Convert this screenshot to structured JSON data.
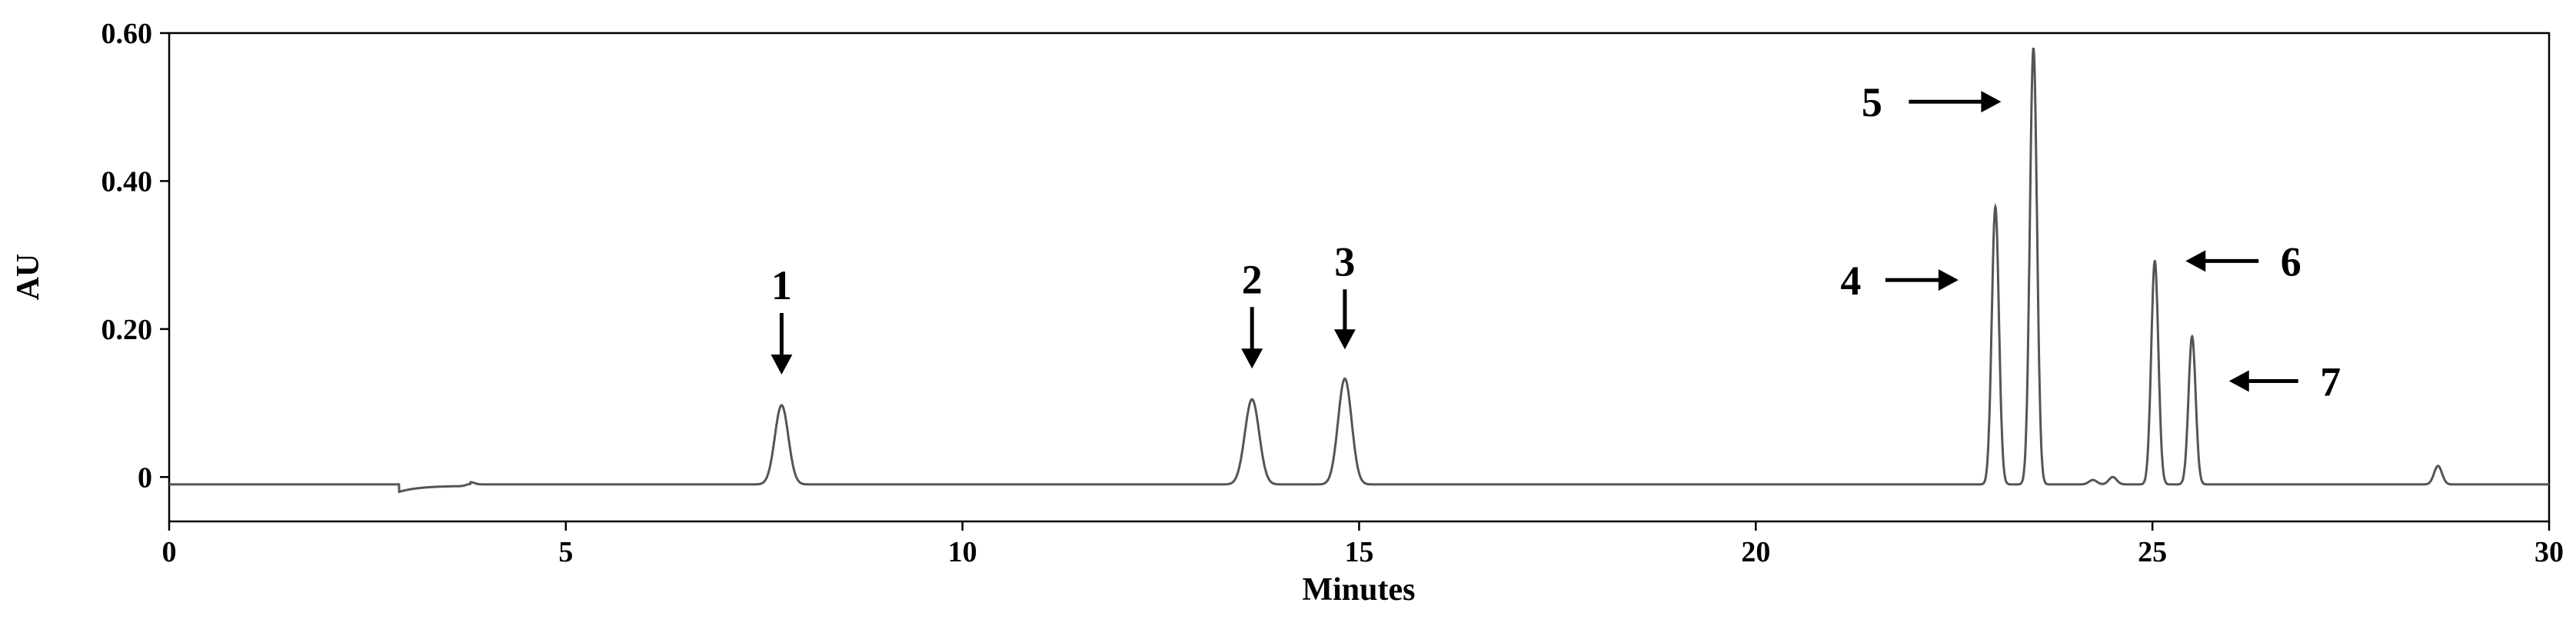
{
  "chart_data": {
    "type": "line",
    "title": "",
    "xlabel": "Minutes",
    "ylabel": "AU",
    "xlim": [
      0,
      30
    ],
    "ylim": [
      -0.06,
      0.6
    ],
    "x_ticks": [
      0,
      5,
      10,
      15,
      20,
      25,
      30
    ],
    "y_ticks": [
      {
        "value": 0,
        "label": "0"
      },
      {
        "value": 0.2,
        "label": "0.20"
      },
      {
        "value": 0.4,
        "label": "0.40"
      },
      {
        "value": 0.6,
        "label": "0.60"
      }
    ],
    "baseline": -0.01,
    "peaks": [
      {
        "label": "1",
        "x": 7.72,
        "y": 0.097
      },
      {
        "label": "2",
        "x": 13.65,
        "y": 0.105
      },
      {
        "label": "3",
        "x": 14.82,
        "y": 0.133
      },
      {
        "label": "4",
        "x": 23.02,
        "y": 0.365
      },
      {
        "label": "5",
        "x": 23.5,
        "y": 0.58
      },
      {
        "label": "6",
        "x": 25.03,
        "y": 0.292
      },
      {
        "label": "7",
        "x": 25.5,
        "y": 0.19
      }
    ],
    "minor_peaks": [
      {
        "x": 24.5,
        "y": 0.0
      },
      {
        "x": 28.6,
        "y": 0.015
      }
    ]
  },
  "colors": {
    "trace": "#555555",
    "axis": "#000000",
    "arrow": "#000000"
  }
}
